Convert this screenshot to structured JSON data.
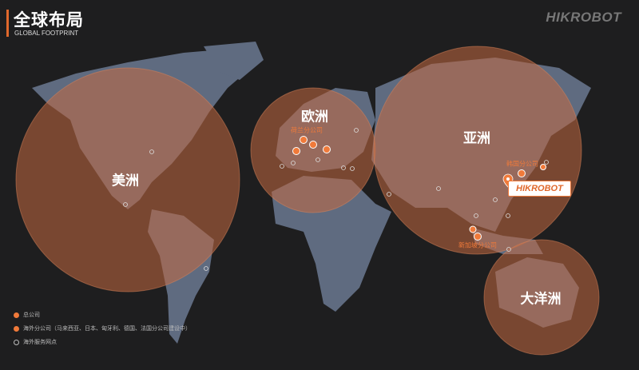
{
  "header": {
    "title": "全球布局",
    "subtitle": "GLOBAL FOOTPRINT",
    "brand": "HIKROBOT"
  },
  "regions": {
    "americas": "美洲",
    "europe": "欧洲",
    "asia": "亚洲",
    "oceania": "大洋洲"
  },
  "offices": {
    "netherlands": "荷兰分公司",
    "korea": "韩国分公司",
    "singapore": "新加坡分公司",
    "hq": "HIKROBOT"
  },
  "legend": [
    {
      "icon": "pin-icon",
      "label": "总公司"
    },
    {
      "icon": "orange-dot-icon",
      "label": "海外分公司（马来西亚、日本、匈牙利、德国、法国分公司建设中）"
    },
    {
      "icon": "ring-icon",
      "label": "海外服务网点"
    }
  ],
  "colors": {
    "accent": "#e0682c",
    "land": "#5f6b80",
    "circle": "#c46a40"
  }
}
